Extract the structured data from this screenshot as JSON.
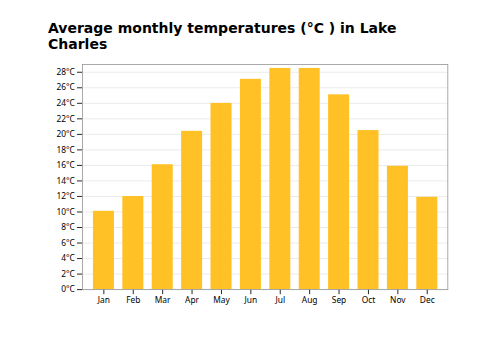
{
  "chart_data": {
    "type": "bar",
    "title": "Average monthly temperatures (°C ) in Lake Charles",
    "categories": [
      "Jan",
      "Feb",
      "Mar",
      "Apr",
      "May",
      "Jun",
      "Jul",
      "Aug",
      "Sep",
      "Oct",
      "Nov",
      "Dec"
    ],
    "values": [
      10.1,
      12.0,
      16.1,
      20.4,
      24.0,
      27.1,
      28.5,
      28.5,
      25.1,
      20.5,
      15.9,
      11.9
    ],
    "color": "#FFC125",
    "ylim": [
      0,
      29
    ],
    "yticks": [
      {
        "value": 0,
        "label": "0°C"
      },
      {
        "value": 2,
        "label": "2°C"
      },
      {
        "value": 4,
        "label": "4°C"
      },
      {
        "value": 6,
        "label": "6°C"
      },
      {
        "value": 8,
        "label": "8°C"
      },
      {
        "value": 10,
        "label": "10°C"
      },
      {
        "value": 12,
        "label": "12°C"
      },
      {
        "value": 14,
        "label": "14°C"
      },
      {
        "value": 16,
        "label": "16°C"
      },
      {
        "value": 18,
        "label": "18°C"
      },
      {
        "value": 20,
        "label": "20°C"
      },
      {
        "value": 22,
        "label": "22°C"
      },
      {
        "value": 24,
        "label": "24°C"
      },
      {
        "value": 26,
        "label": "26°C"
      },
      {
        "value": 28,
        "label": "28°C"
      }
    ],
    "grid": true
  }
}
